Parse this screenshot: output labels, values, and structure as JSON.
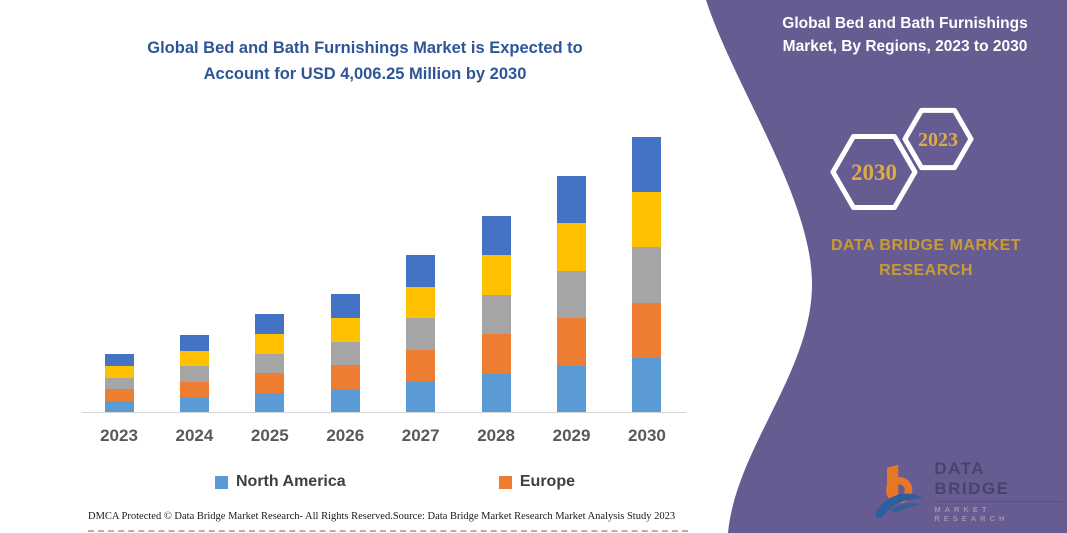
{
  "left_panel": {
    "title": "Global Bed and Bath Furnishings Market is Expected to Account for USD 4,006.25 Million by 2030",
    "footer_left": "DMCA Protected © Data Bridge Market Research-  All Rights Reserved.",
    "footer_right": "Source: Data Bridge Market Research  Market Analysis Study 2023"
  },
  "right_panel": {
    "title": "Global Bed and Bath Furnishings Market, By Regions, 2023 to 2030",
    "badge_back_year": "2030",
    "badge_front_year": "2023",
    "brand": "DATA BRIDGE MARKET RESEARCH",
    "background_color": "#675C91",
    "accent_gold": "#DFAB43",
    "brand_gold": "#C99B33"
  },
  "logo": {
    "title": "DATA BRIDGE",
    "subtitle": "MARKET RESEARCH"
  },
  "theme": {
    "title_blue": "#2F5597",
    "axis_label_gray": "#595959",
    "axis_line_gray": "#D6D6D6"
  },
  "chart_data": {
    "type": "bar",
    "stacked": true,
    "title": "Global Bed and Bath Furnishings Market, By Regions, 2023 to 2030",
    "unit": "USD Million",
    "annotation": "Total market expected to account for USD 4,006.25 Million by 2030",
    "categories": [
      "2023",
      "2024",
      "2025",
      "2026",
      "2027",
      "2028",
      "2029",
      "2030"
    ],
    "series": [
      {
        "key": "north-america",
        "name": "North America",
        "color": "#5B9BD5",
        "values": [
          171,
          226,
          287,
          346,
          459,
          572,
          688,
          801.25
        ]
      },
      {
        "key": "europe",
        "name": "Europe",
        "color": "#ED7D31",
        "values": [
          171,
          226,
          287,
          346,
          459,
          572,
          688,
          801.25
        ]
      },
      {
        "key": "region-3",
        "name": "Unlabeled region (gray)",
        "color": "#A5A5A5",
        "values": [
          171,
          226,
          287,
          346,
          459,
          572,
          688,
          801.25
        ]
      },
      {
        "key": "region-4",
        "name": "Unlabeled region (yellow)",
        "color": "#FFC000",
        "values": [
          171,
          226,
          287,
          346,
          459,
          572,
          688,
          801.25
        ]
      },
      {
        "key": "region-5",
        "name": "Unlabeled region (dark blue)",
        "color": "#4472C4",
        "values": [
          171,
          226,
          287,
          346,
          459,
          572,
          688,
          801.25
        ]
      }
    ],
    "totals": [
      855,
      1130,
      1435,
      1730,
      2295,
      2860,
      3440,
      4006.25
    ],
    "legend": [
      "North America",
      "Europe"
    ],
    "legend_position": "bottom",
    "xlabel": "",
    "ylabel": "",
    "y_axis_visible": false,
    "ylim": [
      0,
      4400
    ],
    "grid": false
  }
}
